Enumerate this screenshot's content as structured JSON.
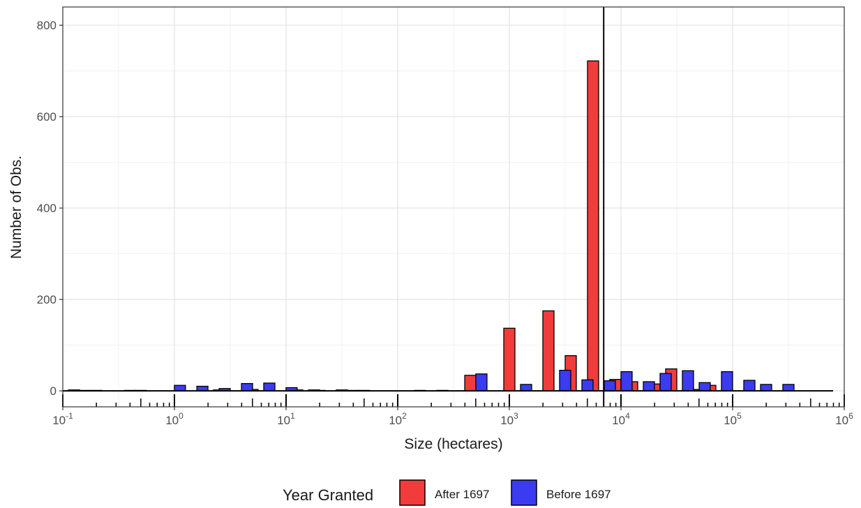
{
  "chart_data": {
    "type": "bar",
    "title": "",
    "xlabel": "Size (hectares)",
    "ylabel": "Number of Obs.",
    "x_scale": "log10",
    "xlim": [
      0.1,
      1000000
    ],
    "ylim": [
      -35,
      840
    ],
    "y_ticks": [
      0,
      200,
      400,
      600,
      800
    ],
    "x_ticks": [
      {
        "base": "10",
        "exp": "-1"
      },
      {
        "base": "10",
        "exp": "0"
      },
      {
        "base": "10",
        "exp": "1"
      },
      {
        "base": "10",
        "exp": "2"
      },
      {
        "base": "10",
        "exp": "3"
      },
      {
        "base": "10",
        "exp": "4"
      },
      {
        "base": "10",
        "exp": "5"
      },
      {
        "base": "10",
        "exp": "6"
      }
    ],
    "grid": true,
    "vertical_line_x": 7000,
    "legend": {
      "title": "Year Granted",
      "position": "bottom"
    },
    "bin_width_log10": 0.1,
    "series": [
      {
        "name": "After 1697",
        "color": "#f23b3b",
        "bins": [
          {
            "x": 0.126,
            "value": 2
          },
          {
            "x": 0.2,
            "value": 1
          },
          {
            "x": 0.4,
            "value": 1
          },
          {
            "x": 2.51,
            "value": 2
          },
          {
            "x": 5.01,
            "value": 3
          },
          {
            "x": 12.6,
            "value": 2
          },
          {
            "x": 20,
            "value": 1
          },
          {
            "x": 31.6,
            "value": 2
          },
          {
            "x": 50.1,
            "value": 1
          },
          {
            "x": 158,
            "value": 1
          },
          {
            "x": 447,
            "value": 34
          },
          {
            "x": 1000,
            "value": 137
          },
          {
            "x": 2239,
            "value": 175
          },
          {
            "x": 3548,
            "value": 77
          },
          {
            "x": 5623,
            "value": 722
          },
          {
            "x": 8913,
            "value": 25
          },
          {
            "x": 12589,
            "value": 20
          },
          {
            "x": 19953,
            "value": 15
          },
          {
            "x": 28184,
            "value": 48
          },
          {
            "x": 44668,
            "value": 3
          },
          {
            "x": 63096,
            "value": 12
          },
          {
            "x": 89125,
            "value": 3
          }
        ]
      },
      {
        "name": "Before 1697",
        "color": "#3b3bf2",
        "bins": [
          {
            "x": 0.158,
            "value": 1
          },
          {
            "x": 0.5,
            "value": 1
          },
          {
            "x": 1.12,
            "value": 12
          },
          {
            "x": 1.78,
            "value": 10
          },
          {
            "x": 2.82,
            "value": 5
          },
          {
            "x": 4.47,
            "value": 16
          },
          {
            "x": 7.08,
            "value": 17
          },
          {
            "x": 11.2,
            "value": 7
          },
          {
            "x": 17.8,
            "value": 2
          },
          {
            "x": 39.8,
            "value": 1
          },
          {
            "x": 251,
            "value": 1
          },
          {
            "x": 562,
            "value": 37
          },
          {
            "x": 1413,
            "value": 14
          },
          {
            "x": 3162,
            "value": 45
          },
          {
            "x": 5012,
            "value": 24
          },
          {
            "x": 7943,
            "value": 22
          },
          {
            "x": 11220,
            "value": 42
          },
          {
            "x": 17783,
            "value": 20
          },
          {
            "x": 25119,
            "value": 38
          },
          {
            "x": 39811,
            "value": 44
          },
          {
            "x": 56234,
            "value": 18
          },
          {
            "x": 89125,
            "value": 42
          },
          {
            "x": 141254,
            "value": 23
          },
          {
            "x": 199526,
            "value": 14
          },
          {
            "x": 316228,
            "value": 14
          }
        ]
      }
    ]
  }
}
